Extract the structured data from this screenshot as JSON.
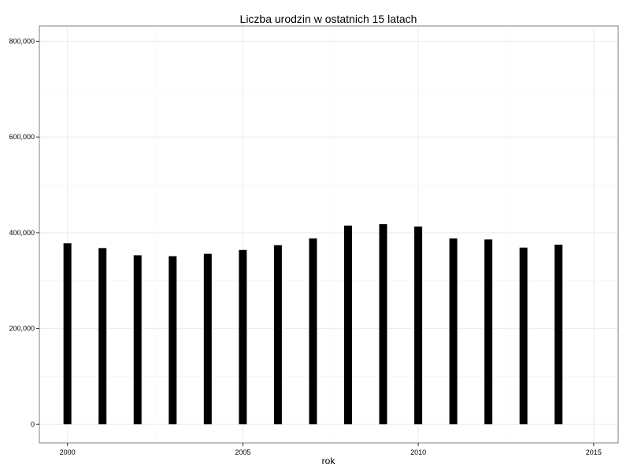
{
  "chart_data": {
    "type": "bar",
    "title": "Liczba urodzin w ostatnich 15 latach",
    "xlabel": "rok",
    "ylabel": "",
    "x": [
      2000,
      2001,
      2002,
      2003,
      2004,
      2005,
      2006,
      2007,
      2008,
      2009,
      2010,
      2011,
      2012,
      2013,
      2014
    ],
    "values": [
      378000,
      368000,
      353000,
      351000,
      356000,
      364000,
      374000,
      388000,
      415000,
      418000,
      413000,
      388000,
      386000,
      369000,
      375000
    ],
    "xlim": [
      1999.2,
      2015.7
    ],
    "ylim": [
      -39000,
      832000
    ],
    "x_ticks": [
      2000,
      2005,
      2010,
      2015
    ],
    "x_tick_labels": [
      "2000",
      "2005",
      "2010",
      "2015"
    ],
    "y_ticks": [
      0,
      200000,
      400000,
      600000,
      800000
    ],
    "y_tick_labels": [
      "0",
      "200,000",
      "400,000",
      "600,000",
      "800,000"
    ],
    "grid": true,
    "colors": {
      "bar": "#000000",
      "grid": "#ebebeb",
      "panel_border": "#7f7f7f"
    }
  }
}
